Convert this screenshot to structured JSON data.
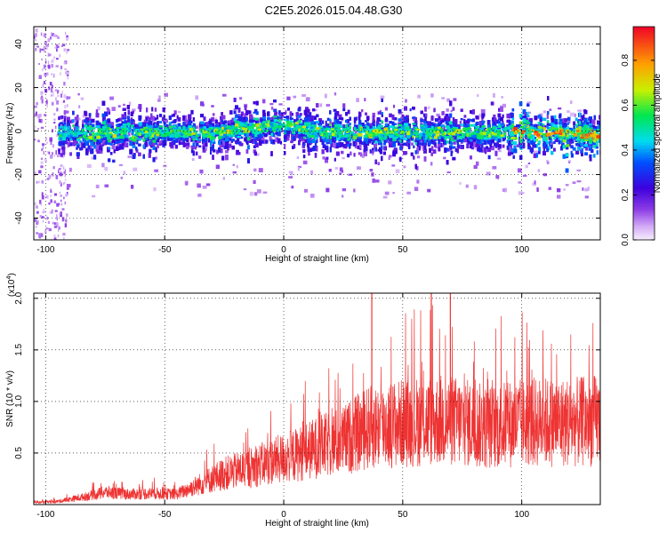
{
  "title": "C2E5.2026.015.04.48.G30",
  "chart_data": [
    {
      "type": "heatmap",
      "xlabel": "Height of straight line (km)",
      "ylabel": "Frequency (Hz)",
      "xlim": [
        -105,
        133
      ],
      "ylim": [
        -50,
        48
      ],
      "xticks": [
        -100,
        -50,
        0,
        50,
        100
      ],
      "yticks": [
        -40,
        -20,
        0,
        20,
        40
      ],
      "colorbar": {
        "label": "Normalized spectral amplitude",
        "range": [
          0,
          0.95
        ],
        "ticks": [
          0.0,
          0.2,
          0.4,
          0.6,
          0.8
        ],
        "tick_labels": [
          "0.0",
          "0.2",
          "0.4",
          "0.6",
          "0.8"
        ]
      },
      "ridge": {
        "description_points": [
          [
            -100,
            0
          ],
          [
            -60,
            0
          ],
          [
            -30,
            0
          ],
          [
            0,
            4
          ],
          [
            10,
            1
          ],
          [
            30,
            0
          ],
          [
            50,
            0
          ],
          [
            80,
            0
          ],
          [
            100,
            0
          ],
          [
            133,
            -1
          ]
        ]
      },
      "grid": true
    },
    {
      "type": "line",
      "xlabel": "Height of straight line (km)",
      "ylabel": "SNR (10 * v/v)",
      "ylabel_multiplier": "(x10",
      "ylabel_multiplier_exp": "4",
      "ylabel_multiplier_close": ")",
      "xlim": [
        -105,
        133
      ],
      "ylim": [
        0,
        2.05
      ],
      "xticks": [
        -100,
        -50,
        0,
        50,
        100
      ],
      "yticks": [
        0.5,
        1.0,
        1.5,
        2.0
      ],
      "ytick_labels": [
        "0.5",
        "1.0",
        "1.5",
        "2.0"
      ],
      "series": [
        {
          "color": "#ee3333",
          "envelope_x": [
            -105,
            -95,
            -85,
            -75,
            -65,
            -55,
            -45,
            -35,
            -25,
            -15,
            -5,
            5,
            15,
            25,
            35,
            45,
            55,
            65,
            75,
            85,
            95,
            105,
            115,
            125,
            133
          ],
          "envelope_mean": [
            0.02,
            0.03,
            0.07,
            0.12,
            0.1,
            0.11,
            0.1,
            0.2,
            0.3,
            0.35,
            0.42,
            0.48,
            0.56,
            0.62,
            0.74,
            0.78,
            0.8,
            0.82,
            0.8,
            0.75,
            0.78,
            0.8,
            0.8,
            0.8,
            0.82
          ]
        }
      ],
      "grid": true
    }
  ]
}
